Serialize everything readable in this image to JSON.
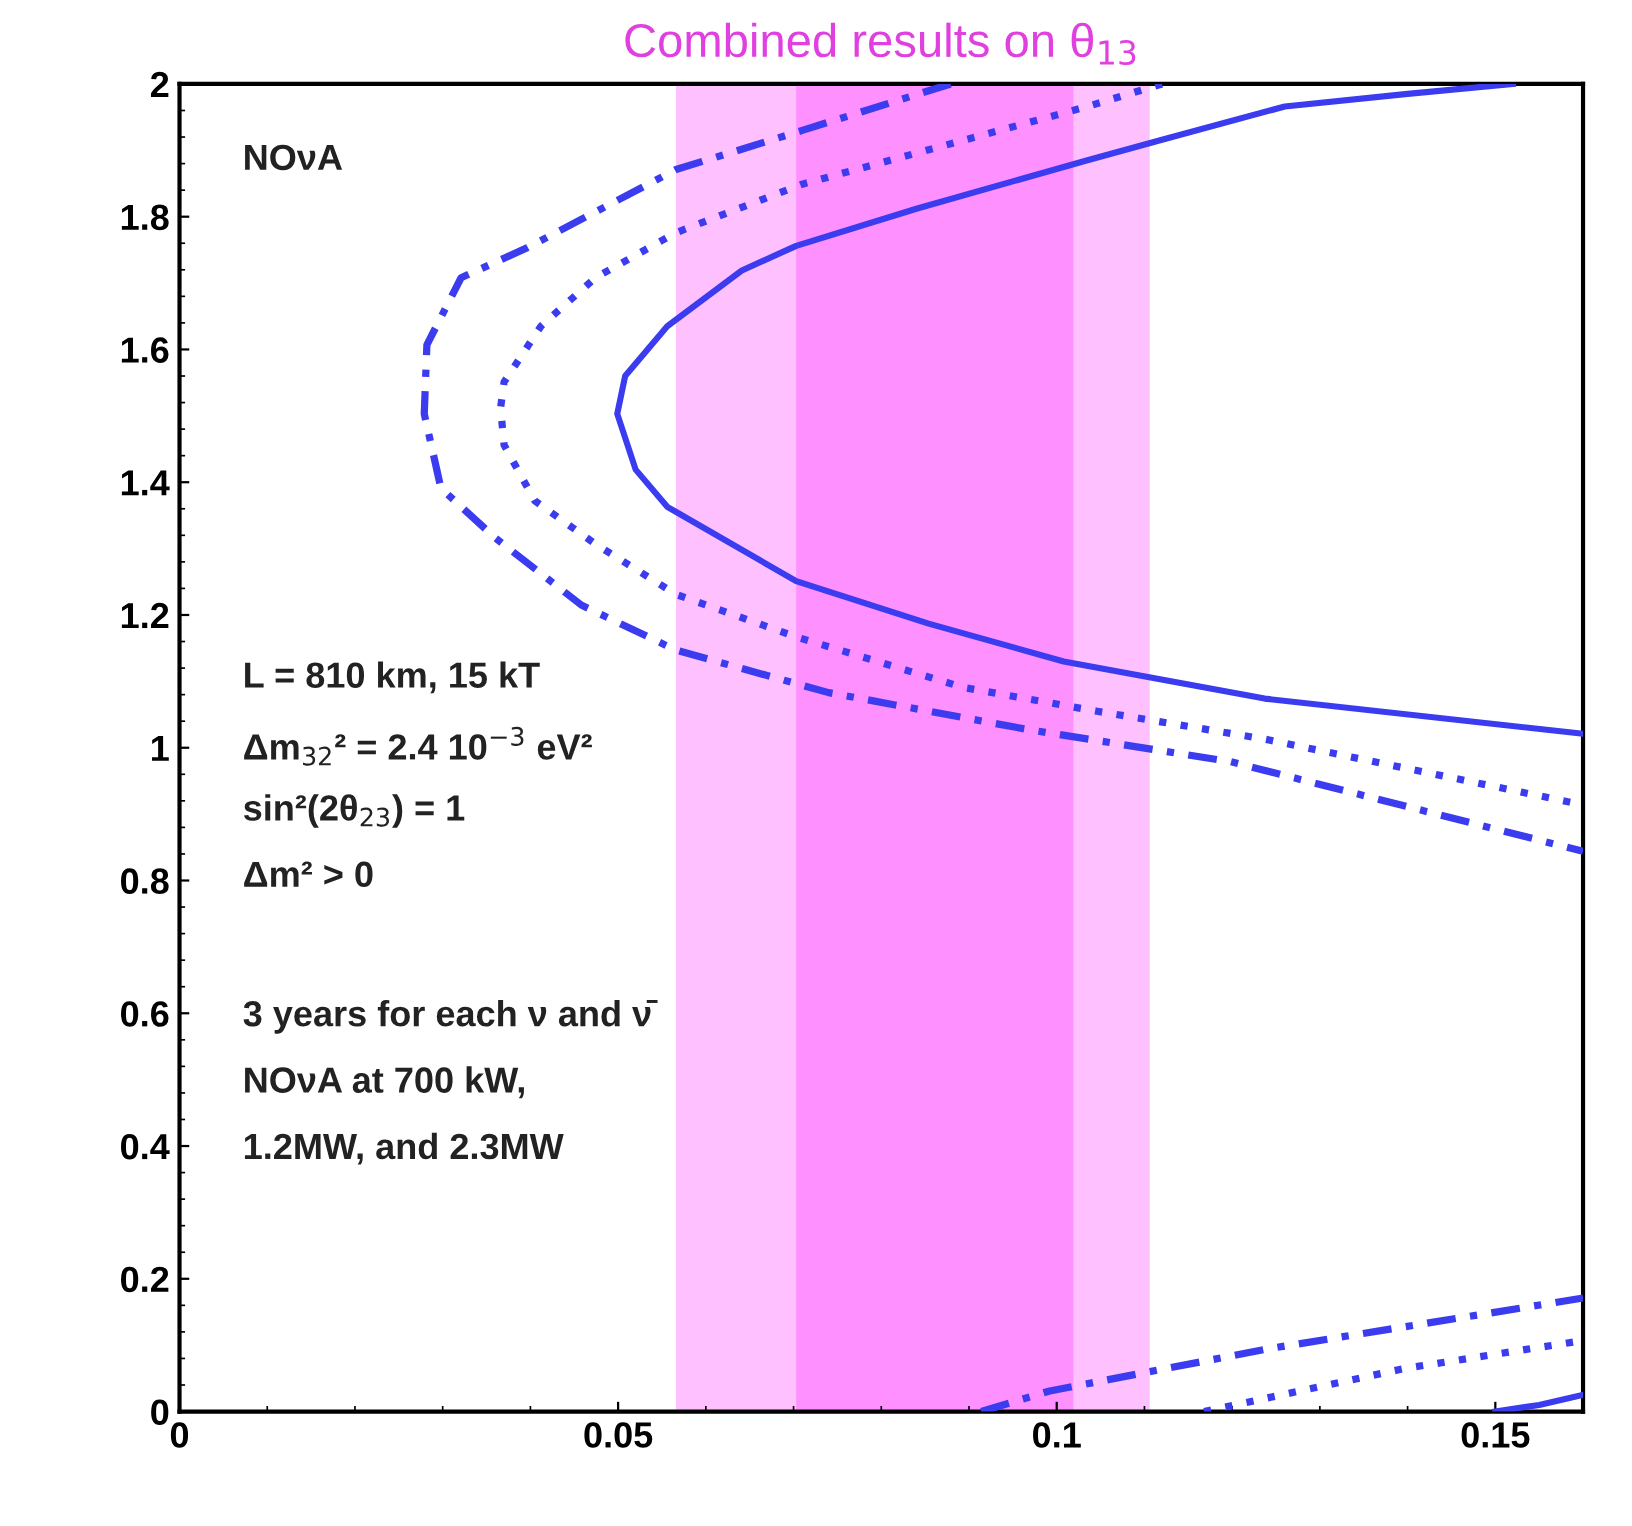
{
  "chart_data": {
    "type": "line",
    "title": "Combined results on θ$_{13}$",
    "xlim": [
      0,
      0.16
    ],
    "xticks": [
      0,
      0.05,
      0.1,
      0.15
    ],
    "ylim": [
      0,
      2
    ],
    "yticks": [
      0,
      0.2,
      0.4,
      0.6,
      0.8,
      1,
      1.2,
      1.4,
      1.6,
      1.8,
      2
    ],
    "grid": false,
    "legend": false,
    "bands": [
      {
        "axis": "x",
        "from": 0.0566,
        "to": 0.1106,
        "color": "#ffc0ff"
      },
      {
        "axis": "x",
        "from": 0.0703,
        "to": 0.1019,
        "color": "#ff90ff"
      }
    ],
    "series": [
      {
        "color": "#3b3bf0",
        "line_style": "solid",
        "x": [
          0.152,
          0.14,
          0.126,
          0.112,
          0.1035,
          0.084,
          0.0703,
          0.0641,
          0.0556,
          0.0508,
          0.0499,
          0.052,
          0.0556,
          0.0703,
          0.0854,
          0.1008,
          0.1237,
          0.16,
          null,
          0.15,
          0.155,
          0.16
        ],
        "values": [
          2,
          1.985,
          1.966,
          1.916,
          1.885,
          1.812,
          1.756,
          1.719,
          1.635,
          1.56,
          1.503,
          1.419,
          1.363,
          1.251,
          1.187,
          1.13,
          1.074,
          1.021,
          null,
          0,
          0.01,
          0.025
        ]
      },
      {
        "color": "#3b3bf0",
        "line_style": "dotted",
        "x": [
          0.112,
          0.1035,
          0.071,
          0.0566,
          0.0474,
          0.0412,
          0.037,
          0.0366,
          0.037,
          0.0405,
          0.0474,
          0.0566,
          0.0703,
          0.0893,
          0.1046,
          0.1237,
          0.16,
          null,
          0.1168,
          0.1397,
          0.16
        ],
        "values": [
          2,
          1.966,
          1.849,
          1.776,
          1.708,
          1.635,
          1.551,
          1.512,
          1.456,
          1.372,
          1.307,
          1.231,
          1.167,
          1.091,
          1.055,
          1.013,
          0.914,
          null,
          0,
          0.065,
          0.107
        ]
      },
      {
        "color": "#3b3bf0",
        "line_style": "dashdot",
        "x": [
          0.0879,
          0.071,
          0.0566,
          0.0396,
          0.0321,
          0.0282,
          0.0279,
          0.0298,
          0.036,
          0.0458,
          0.0566,
          0.074,
          0.0969,
          0.1198,
          0.16,
          null,
          0.0914,
          0.0992,
          0.1243,
          0.16
        ],
        "values": [
          2,
          1.93,
          1.871,
          1.753,
          1.708,
          1.607,
          1.503,
          1.391,
          1.316,
          1.215,
          1.147,
          1.083,
          1.027,
          0.979,
          0.844,
          null,
          0,
          0.031,
          0.095,
          0.171
        ]
      }
    ],
    "annotations": [
      "NOνA",
      "L = 810 km, 15 kT",
      "Δm$_{32}$² = 2.4 10$^{−3}$ eV²",
      "sin²(2θ$_{23}$) = 1",
      "Δm² > 0",
      "3 years for each ν and ν̄",
      "NOνA at 700 kW,",
      "1.2MW, and 2.3MW"
    ]
  }
}
